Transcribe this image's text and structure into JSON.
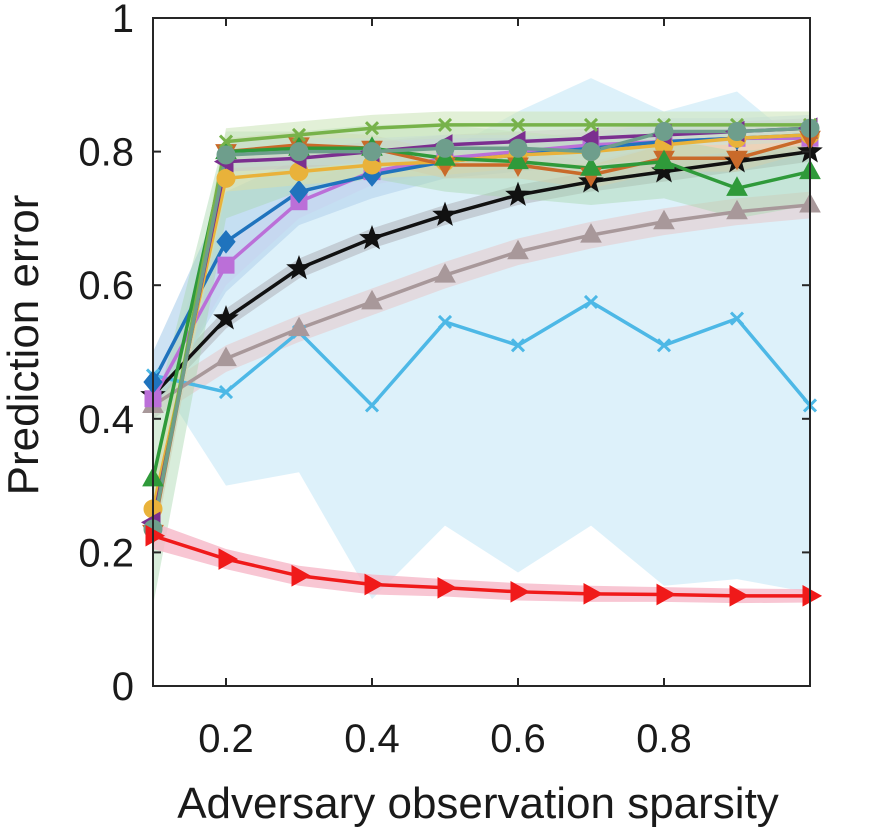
{
  "chart_data": {
    "type": "line",
    "xlabel": "Adversary observation sparsity",
    "ylabel": "Prediction error",
    "xlim": [
      0.1,
      1.0
    ],
    "ylim": [
      0,
      1
    ],
    "xticks": [
      0.2,
      0.4,
      0.6,
      0.8
    ],
    "xtick_labels": [
      "0.2",
      "0.4",
      "0.6",
      "0.8"
    ],
    "yticks": [
      0,
      0.2,
      0.4,
      0.6,
      0.8,
      1
    ],
    "ytick_labels": [
      "0",
      "0.2",
      "0.4",
      "0.6",
      "0.8",
      "1"
    ],
    "grid": false,
    "legend": "none",
    "x": [
      0.1,
      0.2,
      0.3,
      0.4,
      0.5,
      0.6,
      0.7,
      0.8,
      0.9,
      1.0
    ],
    "series": [
      {
        "color": "#4db8e6",
        "marker": "x",
        "values": [
          0.465,
          0.44,
          0.53,
          0.42,
          0.545,
          0.51,
          0.575,
          0.51,
          0.55,
          0.42
        ],
        "band_upper": [
          0.42,
          0.74,
          0.78,
          0.8,
          0.8,
          0.86,
          0.91,
          0.86,
          0.89,
          0.8
        ],
        "band_lower": [
          0.47,
          0.3,
          0.32,
          0.13,
          0.24,
          0.17,
          0.24,
          0.15,
          0.16,
          0.14
        ],
        "band_color": "#d7eef9",
        "band_opacity": 0.85
      },
      {
        "color": "#a8989a",
        "marker": "triangle-up",
        "values": [
          0.42,
          0.49,
          0.535,
          0.575,
          0.615,
          0.65,
          0.675,
          0.695,
          0.71,
          0.72
        ],
        "band_upper": [
          0.44,
          0.51,
          0.555,
          0.595,
          0.635,
          0.67,
          0.695,
          0.715,
          0.73,
          0.74
        ],
        "band_lower": [
          0.4,
          0.47,
          0.515,
          0.555,
          0.595,
          0.63,
          0.655,
          0.675,
          0.69,
          0.7
        ],
        "band_color": "#e3d5d8",
        "band_opacity": 0.8
      },
      {
        "color": "#111111",
        "marker": "star",
        "values": [
          0.435,
          0.55,
          0.625,
          0.67,
          0.705,
          0.735,
          0.755,
          0.77,
          0.785,
          0.8
        ],
        "band_upper": [
          0.45,
          0.565,
          0.64,
          0.685,
          0.72,
          0.75,
          0.77,
          0.785,
          0.8,
          0.815
        ],
        "band_lower": [
          0.42,
          0.535,
          0.61,
          0.655,
          0.69,
          0.72,
          0.74,
          0.755,
          0.77,
          0.785
        ],
        "band_color": "#b9bfc6",
        "band_opacity": 0.7
      },
      {
        "color": "#bb6fd8",
        "marker": "square",
        "values": [
          0.43,
          0.63,
          0.725,
          0.77,
          0.79,
          0.8,
          0.81,
          0.815,
          0.82,
          0.82
        ],
        "band_upper": [
          0.45,
          0.66,
          0.75,
          0.79,
          0.81,
          0.82,
          0.83,
          0.835,
          0.84,
          0.84
        ],
        "band_lower": [
          0.41,
          0.6,
          0.7,
          0.75,
          0.77,
          0.78,
          0.79,
          0.795,
          0.8,
          0.8
        ],
        "band_color": "#e5cdf1",
        "band_opacity": 0.7
      },
      {
        "color": "#1f73bd",
        "marker": "diamond",
        "values": [
          0.455,
          0.665,
          0.74,
          0.765,
          0.785,
          0.795,
          0.805,
          0.815,
          0.82,
          0.825
        ],
        "band_upper": [
          0.5,
          0.74,
          0.79,
          0.8,
          0.81,
          0.82,
          0.83,
          0.84,
          0.845,
          0.845
        ],
        "band_lower": [
          0.41,
          0.59,
          0.69,
          0.73,
          0.76,
          0.77,
          0.78,
          0.79,
          0.795,
          0.805
        ],
        "band_color": "#bcd8ef",
        "band_opacity": 0.75
      },
      {
        "color": "#e9b23a",
        "marker": "circle",
        "values": [
          0.265,
          0.76,
          0.77,
          0.78,
          0.785,
          0.795,
          0.8,
          0.81,
          0.82,
          0.825
        ],
        "band_upper": [
          0.3,
          0.78,
          0.79,
          0.8,
          0.805,
          0.815,
          0.82,
          0.83,
          0.84,
          0.845
        ],
        "band_lower": [
          0.23,
          0.74,
          0.75,
          0.76,
          0.765,
          0.775,
          0.78,
          0.79,
          0.8,
          0.805
        ],
        "band_color": "#f6e3b3",
        "band_opacity": 0.7
      },
      {
        "color": "#7b2f8f",
        "marker": "triangle-left",
        "values": [
          0.245,
          0.785,
          0.79,
          0.8,
          0.81,
          0.815,
          0.82,
          0.825,
          0.83,
          0.835
        ],
        "band_upper": [
          0.27,
          0.8,
          0.805,
          0.815,
          0.825,
          0.83,
          0.835,
          0.84,
          0.845,
          0.85
        ],
        "band_lower": [
          0.22,
          0.77,
          0.775,
          0.785,
          0.795,
          0.8,
          0.805,
          0.81,
          0.815,
          0.82
        ],
        "band_color": "#d6bde0",
        "band_opacity": 0.6
      },
      {
        "color": "#c96a2a",
        "marker": "triangle-down",
        "values": [
          0.23,
          0.8,
          0.81,
          0.805,
          0.78,
          0.78,
          0.765,
          0.79,
          0.79,
          0.82
        ],
        "band_upper": [
          0.26,
          0.82,
          0.83,
          0.825,
          0.8,
          0.8,
          0.785,
          0.81,
          0.81,
          0.84
        ],
        "band_lower": [
          0.2,
          0.78,
          0.79,
          0.785,
          0.76,
          0.76,
          0.745,
          0.77,
          0.77,
          0.8
        ],
        "band_color": "#eecbb0",
        "band_opacity": 0.6
      },
      {
        "color": "#2f9a3a",
        "marker": "triangle-up",
        "values": [
          0.31,
          0.8,
          0.805,
          0.805,
          0.79,
          0.785,
          0.775,
          0.785,
          0.745,
          0.77
        ],
        "band_upper": [
          0.4,
          0.83,
          0.83,
          0.84,
          0.84,
          0.83,
          0.82,
          0.82,
          0.8,
          0.81
        ],
        "band_lower": [
          0.12,
          0.7,
          0.74,
          0.76,
          0.74,
          0.73,
          0.72,
          0.73,
          0.7,
          0.72
        ],
        "band_color": "#a9d6b0",
        "band_opacity": 0.45
      },
      {
        "color": "#77b24a",
        "marker": "x",
        "values": [
          0.235,
          0.815,
          0.825,
          0.835,
          0.84,
          0.84,
          0.84,
          0.84,
          0.84,
          0.84
        ],
        "band_upper": [
          0.26,
          0.835,
          0.845,
          0.855,
          0.86,
          0.86,
          0.86,
          0.86,
          0.86,
          0.86
        ],
        "band_lower": [
          0.21,
          0.795,
          0.805,
          0.815,
          0.82,
          0.82,
          0.82,
          0.82,
          0.82,
          0.82
        ],
        "band_color": "#cfe6bd",
        "band_opacity": 0.6
      },
      {
        "color": "#6e9e8c",
        "marker": "circle",
        "values": [
          0.235,
          0.795,
          0.8,
          0.8,
          0.805,
          0.805,
          0.8,
          0.83,
          0.83,
          0.835
        ],
        "band_upper": [
          0.26,
          0.815,
          0.82,
          0.82,
          0.825,
          0.825,
          0.82,
          0.85,
          0.85,
          0.855
        ],
        "band_lower": [
          0.21,
          0.775,
          0.78,
          0.78,
          0.785,
          0.785,
          0.78,
          0.81,
          0.81,
          0.815
        ],
        "band_color": "#c6ddd4",
        "band_opacity": 0.5
      },
      {
        "color": "#f01a1a",
        "marker": "triangle-right",
        "values": [
          0.225,
          0.19,
          0.165,
          0.152,
          0.147,
          0.141,
          0.138,
          0.137,
          0.135,
          0.135
        ],
        "band_upper": [
          0.245,
          0.205,
          0.18,
          0.167,
          0.16,
          0.154,
          0.15,
          0.148,
          0.146,
          0.145
        ],
        "band_lower": [
          0.205,
          0.175,
          0.15,
          0.137,
          0.134,
          0.128,
          0.126,
          0.126,
          0.124,
          0.125
        ],
        "band_color": "#f6b8c8",
        "band_opacity": 0.8
      }
    ]
  }
}
